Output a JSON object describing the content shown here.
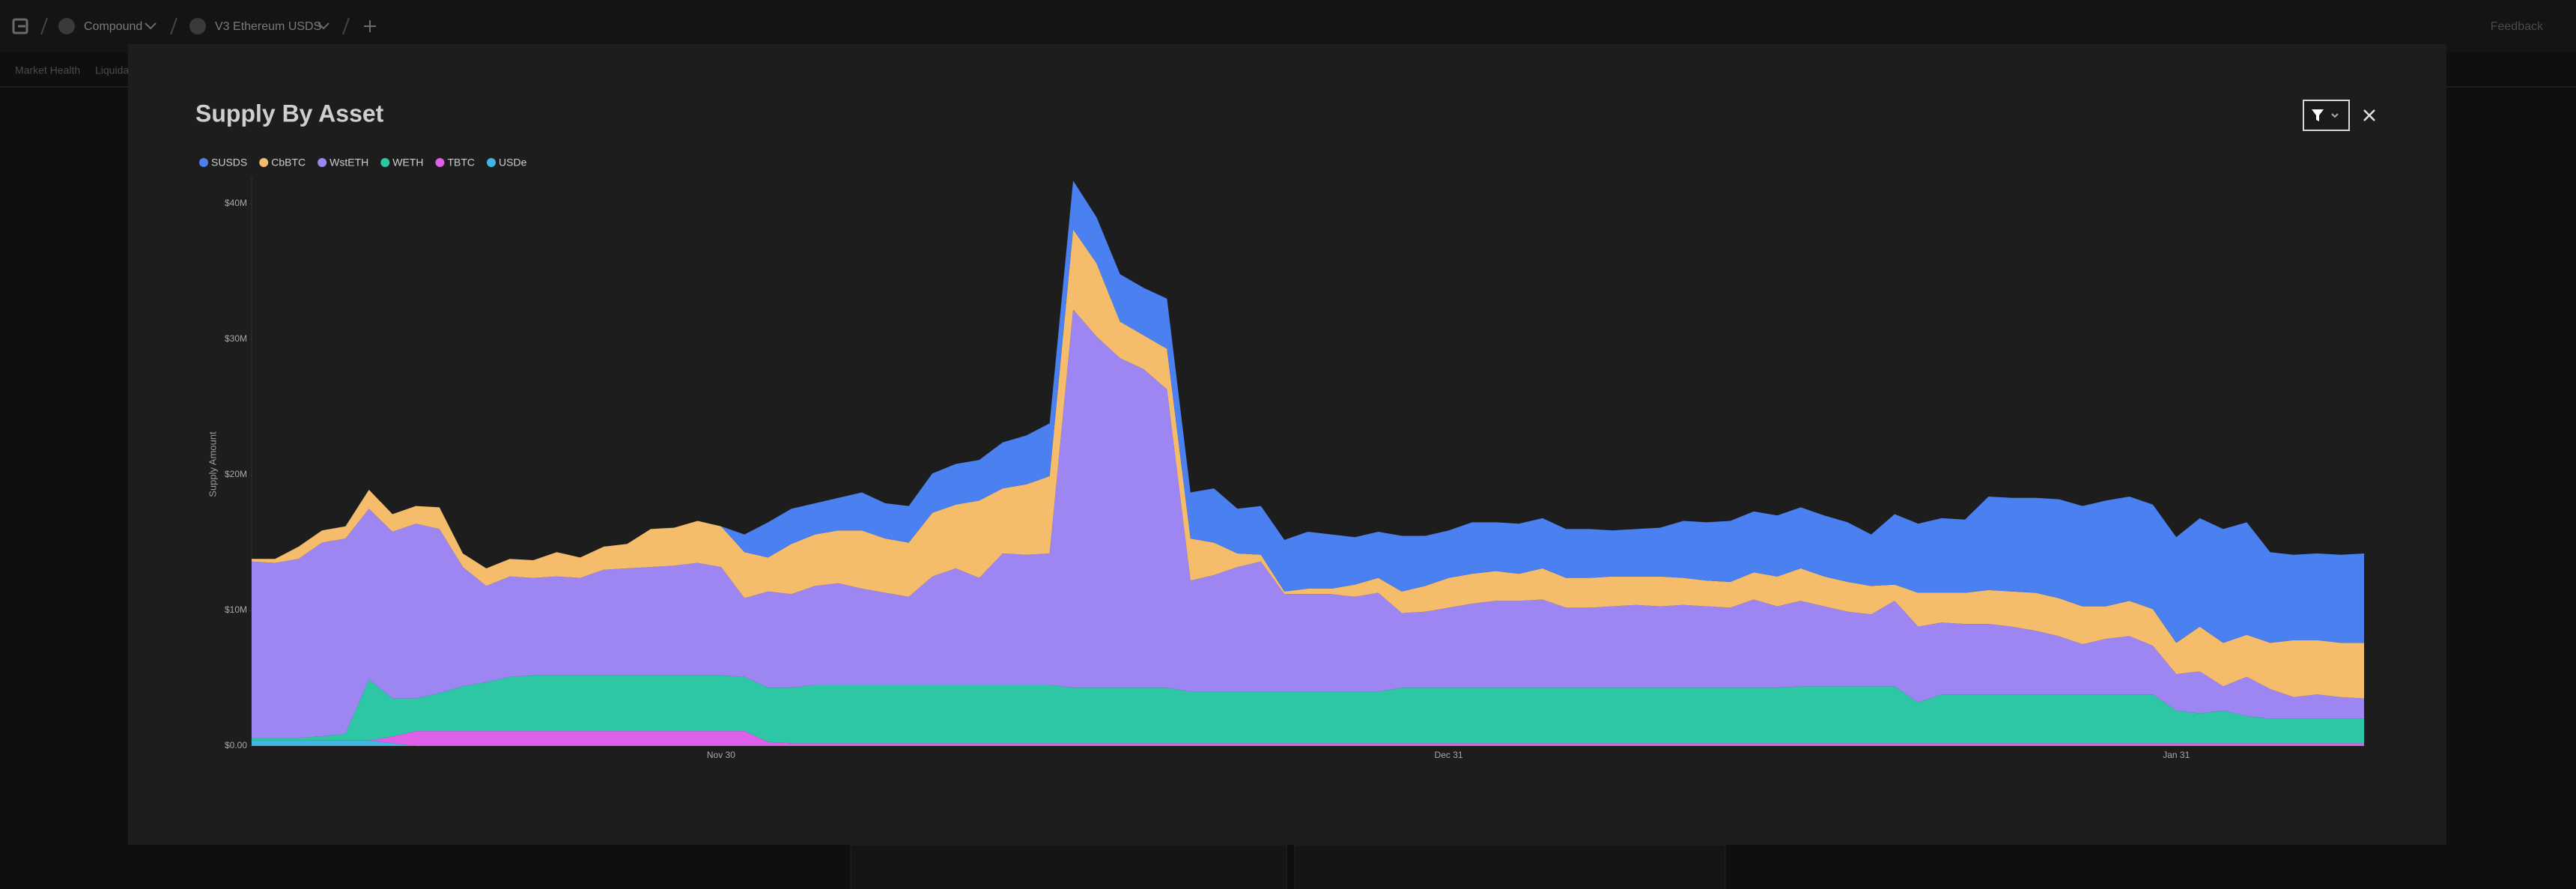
{
  "top_bar": {
    "protocol": "Compound",
    "market": "V3 Ethereum USDS",
    "feedback": "Feedback"
  },
  "tabs": [
    "Market Health",
    "Liquida"
  ],
  "chart_data": {
    "type": "stacked-area",
    "title": "Supply By Asset",
    "ylabel": "Supply Amount",
    "ylim": [
      0,
      42000000
    ],
    "yticks": [
      {
        "value": 0,
        "label": "$0.00"
      },
      {
        "value": 10000000,
        "label": "$10M"
      },
      {
        "value": 20000000,
        "label": "$20M"
      },
      {
        "value": 30000000,
        "label": "$30M"
      },
      {
        "value": 40000000,
        "label": "$40M"
      }
    ],
    "grid": false,
    "legend": "top-left",
    "categories": [
      null,
      null,
      null,
      null,
      null,
      null,
      null,
      null,
      null,
      null,
      null,
      null,
      null,
      null,
      null,
      null,
      null,
      null,
      null,
      null,
      "Nov 30",
      null,
      null,
      null,
      null,
      null,
      null,
      null,
      null,
      null,
      null,
      null,
      null,
      null,
      null,
      null,
      null,
      null,
      null,
      null,
      null,
      null,
      null,
      null,
      null,
      null,
      null,
      null,
      null,
      null,
      null,
      "Dec 31",
      null,
      null,
      null,
      null,
      null,
      null,
      null,
      null,
      null,
      null,
      null,
      null,
      null,
      null,
      null,
      null,
      null,
      null,
      null,
      null,
      null,
      null,
      null,
      null,
      null,
      null,
      null,
      null,
      null,
      null,
      "Jan 31",
      null,
      null,
      null,
      null,
      null,
      null,
      null,
      null
    ],
    "series": [
      {
        "name": "SUSDS",
        "color": "#4a80f0",
        "values": [
          0,
          0,
          0,
          0,
          0,
          0,
          0,
          0,
          0,
          0,
          0,
          0,
          0,
          0,
          0,
          0,
          0,
          0,
          0,
          0,
          0,
          1300000,
          2600000,
          2600000,
          2300000,
          2400000,
          2800000,
          2600000,
          2700000,
          2900000,
          3000000,
          3000000,
          3400000,
          3600000,
          3900000,
          3600000,
          3400000,
          3500000,
          3500000,
          3700000,
          3400000,
          4000000,
          3300000,
          3600000,
          3800000,
          4200000,
          4000000,
          3500000,
          3400000,
          4100000,
          3700000,
          3500000,
          3800000,
          3600000,
          3700000,
          3700000,
          3600000,
          3600000,
          3400000,
          3500000,
          3600000,
          4200000,
          4300000,
          4500000,
          4500000,
          4500000,
          4500000,
          4500000,
          4400000,
          3800000,
          5200000,
          5100000,
          5500000,
          5400000,
          6900000,
          6900000,
          7000000,
          7300000,
          7400000,
          7800000,
          7700000,
          7700000,
          7800000,
          8000000,
          8400000,
          8300000,
          6700000,
          6300000,
          6400000,
          6500000,
          6600000
        ]
      },
      {
        "name": "CbBTC",
        "color": "#f5bd6b",
        "values": [
          200000,
          300000,
          900000,
          900000,
          900000,
          1400000,
          1300000,
          1300000,
          1600000,
          1000000,
          1300000,
          1300000,
          1300000,
          1800000,
          1500000,
          1700000,
          1800000,
          2800000,
          2800000,
          3100000,
          3000000,
          3400000,
          2500000,
          3700000,
          3800000,
          3900000,
          4300000,
          4000000,
          4000000,
          4700000,
          4700000,
          5700000,
          4800000,
          5200000,
          5700000,
          5900000,
          5400000,
          2700000,
          2500000,
          3000000,
          3100000,
          2400000,
          1000000,
          500000,
          200000,
          400000,
          400000,
          900000,
          1100000,
          1600000,
          1900000,
          2200000,
          2200000,
          2200000,
          2000000,
          2300000,
          2200000,
          2200000,
          2200000,
          2100000,
          2200000,
          2000000,
          1900000,
          1900000,
          2000000,
          2200000,
          2400000,
          2200000,
          2200000,
          2100000,
          1200000,
          2500000,
          2200000,
          2300000,
          2500000,
          2600000,
          2800000,
          2800000,
          2800000,
          2400000,
          2600000,
          2700000,
          2300000,
          3300000,
          3200000,
          3100000,
          3400000,
          4200000,
          4000000,
          4000000,
          4100000
        ]
      },
      {
        "name": "WstETH",
        "color": "#9d85f2",
        "values": [
          13000000,
          12900000,
          13200000,
          14300000,
          14400000,
          12600000,
          12300000,
          12900000,
          12100000,
          8800000,
          7100000,
          7400000,
          7200000,
          7300000,
          7200000,
          7800000,
          7900000,
          8000000,
          8100000,
          8300000,
          8000000,
          5800000,
          7100000,
          6900000,
          7300000,
          7500000,
          7100000,
          6800000,
          6500000,
          8000000,
          8600000,
          7900000,
          9700000,
          9600000,
          9700000,
          27900000,
          25900000,
          24300000,
          23500000,
          22000000,
          8200000,
          8600000,
          9200000,
          9600000,
          7200000,
          7200000,
          7200000,
          7000000,
          7300000,
          5500000,
          5600000,
          5900000,
          6200000,
          6400000,
          6400000,
          6500000,
          5900000,
          5900000,
          6000000,
          6100000,
          6000000,
          6100000,
          6000000,
          5900000,
          6500000,
          6000000,
          6300000,
          5900000,
          5500000,
          5300000,
          6300000,
          5600000,
          5300000,
          5200000,
          5200000,
          5000000,
          4700000,
          4300000,
          3700000,
          4100000,
          4300000,
          3600000,
          2700000,
          3100000,
          1800000,
          2900000,
          2200000,
          1600000,
          1800000,
          1600000,
          1500000
        ]
      },
      {
        "name": "WETH",
        "color": "#2ec7a6",
        "values": [
          200000,
          200000,
          200000,
          300000,
          500000,
          4500000,
          2800000,
          2400000,
          2800000,
          3300000,
          3600000,
          4000000,
          4100000,
          4100000,
          4100000,
          4100000,
          4100000,
          4100000,
          4100000,
          4100000,
          4100000,
          4000000,
          4000000,
          4100000,
          4300000,
          4300000,
          4300000,
          4300000,
          4300000,
          4300000,
          4300000,
          4300000,
          4300000,
          4300000,
          4300000,
          4100000,
          4100000,
          4100000,
          4100000,
          4100000,
          3800000,
          3800000,
          3800000,
          3800000,
          3800000,
          3800000,
          3800000,
          3800000,
          3800000,
          4100000,
          4100000,
          4100000,
          4100000,
          4100000,
          4100000,
          4100000,
          4100000,
          4100000,
          4100000,
          4100000,
          4100000,
          4100000,
          4100000,
          4100000,
          4100000,
          4100000,
          4200000,
          4200000,
          4200000,
          4200000,
          4200000,
          3000000,
          3600000,
          3600000,
          3600000,
          3600000,
          3600000,
          3600000,
          3600000,
          3600000,
          3600000,
          3600000,
          2400000,
          2200000,
          2400000,
          2000000,
          1800000,
          1800000,
          1800000,
          1800000,
          1800000
        ]
      },
      {
        "name": "TBTC",
        "color": "#de5fe8",
        "values": [
          0,
          0,
          0,
          0,
          0,
          0,
          500000,
          1100000,
          1100000,
          1100000,
          1100000,
          1100000,
          1100000,
          1100000,
          1100000,
          1100000,
          1100000,
          1100000,
          1100000,
          1100000,
          1100000,
          1100000,
          300000,
          200000,
          200000,
          200000,
          200000,
          200000,
          200000,
          200000,
          200000,
          200000,
          200000,
          200000,
          200000,
          200000,
          200000,
          200000,
          200000,
          200000,
          200000,
          200000,
          200000,
          200000,
          200000,
          200000,
          200000,
          200000,
          200000,
          200000,
          200000,
          200000,
          200000,
          200000,
          200000,
          200000,
          200000,
          200000,
          200000,
          200000,
          200000,
          200000,
          200000,
          200000,
          200000,
          200000,
          200000,
          200000,
          200000,
          200000,
          200000,
          200000,
          200000,
          200000,
          200000,
          200000,
          200000,
          200000,
          200000,
          200000,
          200000,
          200000,
          200000,
          200000,
          200000,
          200000,
          200000,
          200000,
          200000,
          200000,
          200000
        ]
      },
      {
        "name": "USDe",
        "color": "#3fb6e6",
        "values": [
          400000,
          400000,
          400000,
          400000,
          400000,
          400000,
          200000,
          0,
          0,
          0,
          0,
          0,
          0,
          0,
          0,
          0,
          0,
          0,
          0,
          0,
          0,
          0,
          0,
          0,
          0,
          0,
          0,
          0,
          0,
          0,
          0,
          0,
          0,
          0,
          0,
          0,
          0,
          0,
          0,
          0,
          0,
          0,
          0,
          0,
          0,
          0,
          0,
          0,
          0,
          0,
          0,
          0,
          0,
          0,
          0,
          0,
          0,
          0,
          0,
          0,
          0,
          0,
          0,
          0,
          0,
          0,
          0,
          0,
          0,
          0,
          0,
          0,
          0,
          0,
          0,
          0,
          0,
          0,
          0,
          0,
          0,
          0,
          0,
          0,
          0,
          0,
          0,
          0,
          0,
          0,
          0
        ]
      }
    ]
  }
}
